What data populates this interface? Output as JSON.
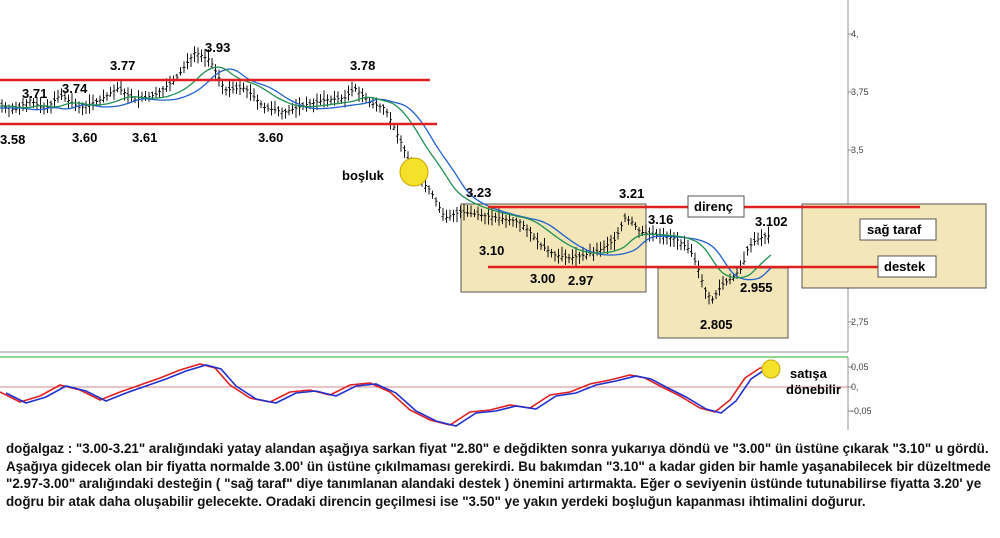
{
  "chart_data": [
    {
      "type": "candlestick",
      "ylim": [
        2.62,
        4.1
      ],
      "y_ticks": [
        "4,",
        "3,75",
        "3,5",
        "3,25",
        "3",
        "2,75"
      ],
      "moving_average_colors": [
        "#2060d0",
        "#209050"
      ],
      "key_prices": [
        {
          "label": "3.58",
          "role": "low"
        },
        {
          "label": "3.71",
          "role": "high"
        },
        {
          "label": "3.74",
          "role": "high"
        },
        {
          "label": "3.60",
          "role": "low"
        },
        {
          "label": "3.77",
          "role": "high"
        },
        {
          "label": "3.61",
          "role": "low"
        },
        {
          "label": "3.93",
          "role": "high"
        },
        {
          "label": "3.60",
          "role": "low"
        },
        {
          "label": "3.78",
          "role": "high"
        },
        {
          "label": "3.23",
          "role": "high"
        },
        {
          "label": "3.10",
          "role": "low"
        },
        {
          "label": "3.00",
          "role": "low"
        },
        {
          "label": "2.97",
          "role": "low"
        },
        {
          "label": "3.21",
          "role": "high"
        },
        {
          "label": "3.16",
          "role": "high"
        },
        {
          "label": "3.102",
          "role": "last"
        },
        {
          "label": "2.955",
          "role": "low"
        },
        {
          "label": "2.805",
          "role": "low"
        }
      ],
      "horizontal_lines": [
        {
          "price": 3.8,
          "color": "#e02020"
        },
        {
          "price": 3.6,
          "color": "#e02020"
        },
        {
          "price": 3.25,
          "color": "#e02020"
        },
        {
          "price": 2.98,
          "color": "#e02020"
        }
      ],
      "annotations": {
        "gap": "boşluk",
        "resistance": "direnç",
        "support": "destek",
        "right_shoulder": "sağ taraf"
      },
      "colors": {
        "lines": "#e02020",
        "box_fill": "#f3e6b8",
        "box_border": "#555555",
        "marker": "#f5e02a"
      }
    },
    {
      "type": "line",
      "ylim": [
        -0.07,
        0.06
      ],
      "y_ticks": [
        "0,05",
        "0,",
        "-0,05"
      ],
      "series_colors": [
        "#e02020",
        "#2030d0"
      ],
      "annotation": [
        "satışa",
        "dönebilir"
      ]
    }
  ],
  "commentary": "doğalgaz : \"3.00-3.21\" aralığındaki yatay alandan aşağıya sarkan fiyat \"2.80\" e değdikten sonra yukarıya döndü ve \"3.00\" ün üstüne çıkarak \"3.10\" u gördü. Aşağıya gidecek olan bir fiyatta normalde 3.00' ün üstüne çıkılmaması gerekirdi. Bu bakımdan \"3.10\" a kadar giden bir hamle yaşanabilecek bir düzeltmede \"2.97-3.00\" aralığındaki desteğin ( \"sağ taraf\" diye tanımlanan alandaki destek ) önemini artırmakta. Eğer o seviyenin üstünde tutunabilirse fiyatta 3.20' ye doğru bir atak daha oluşabilir gelecekte. Oradaki direncin geçilmesi ise \"3.50\" ye yakın yerdeki boşluğun kapanması ihtimalini doğurur."
}
